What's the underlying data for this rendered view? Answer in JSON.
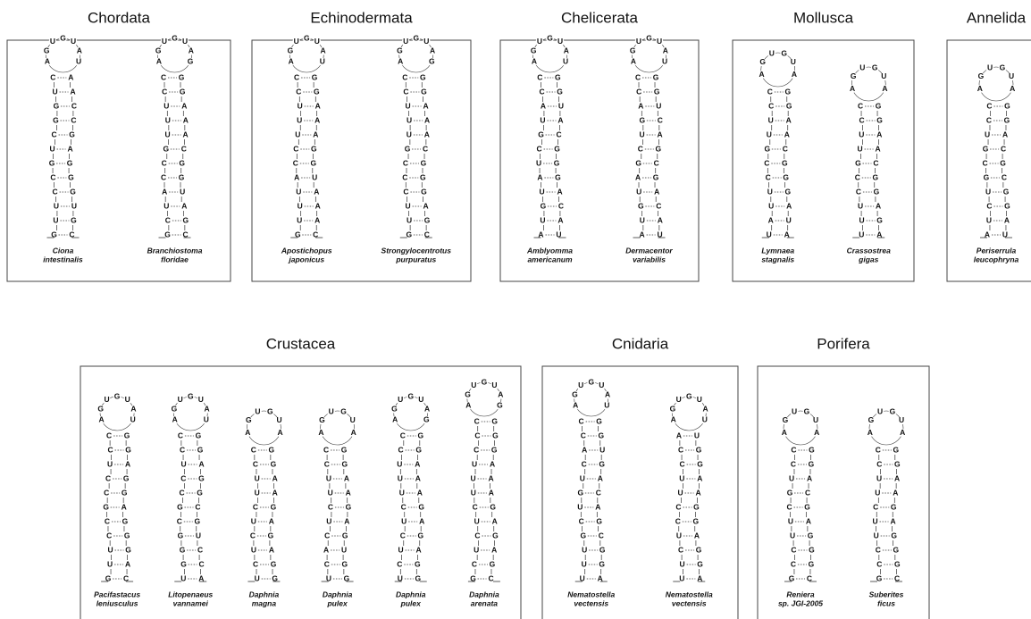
{
  "groups": [
    {
      "title": "Chordata",
      "species": [
        {
          "label": [
            "Ciona",
            "intestinalis"
          ],
          "loop": [
            "A",
            "G",
            "U",
            "G",
            "U",
            "A",
            "U"
          ],
          "left": [
            "G",
            "U",
            "U",
            "C",
            "C",
            "G",
            "U",
            "C",
            "G",
            "G",
            "U",
            "C"
          ],
          "right": [
            "C",
            "G",
            "U",
            "G",
            "G",
            "G",
            "A",
            "G",
            "C",
            "C",
            "A",
            "A"
          ]
        },
        {
          "label": [
            "Branchiostoma",
            "floridae"
          ],
          "loop": [
            "A",
            "G",
            "U",
            "G",
            "U",
            "A",
            "G"
          ],
          "left": [
            "G",
            "C",
            "U",
            "A",
            "C",
            "C",
            "G",
            "U",
            "U",
            "U",
            "C",
            "C"
          ],
          "right": [
            "C",
            "G",
            "A",
            "U",
            "G",
            "G",
            "C",
            "A",
            "A",
            "A",
            "G",
            "G"
          ]
        }
      ]
    },
    {
      "title": "Echinodermata",
      "species": [
        {
          "label": [
            "Apostichopus",
            "japonicus"
          ],
          "loop": [
            "A",
            "G",
            "U",
            "G",
            "U",
            "A",
            "U"
          ],
          "left": [
            "G",
            "U",
            "U",
            "U",
            "A",
            "C",
            "C",
            "U",
            "U",
            "U",
            "C",
            "C"
          ],
          "right": [
            "C",
            "A",
            "A",
            "A",
            "U",
            "G",
            "G",
            "A",
            "A",
            "A",
            "G",
            "G"
          ]
        },
        {
          "label": [
            "Strongylocentrotus",
            "purpuratus"
          ],
          "loop": [
            "A",
            "G",
            "U",
            "G",
            "U",
            "A",
            "G"
          ],
          "left": [
            "G",
            "U",
            "U",
            "C",
            "C",
            "C",
            "G",
            "U",
            "U",
            "U",
            "C",
            "C"
          ],
          "right": [
            "C",
            "G",
            "A",
            "G",
            "G",
            "G",
            "C",
            "A",
            "A",
            "A",
            "G",
            "G"
          ]
        }
      ]
    },
    {
      "title": "Chelicerata",
      "species": [
        {
          "label": [
            "Amblyomma",
            "americanum"
          ],
          "loop": [
            "A",
            "G",
            "U",
            "G",
            "U",
            "A",
            "U"
          ],
          "left": [
            "A",
            "U",
            "G",
            "U",
            "A",
            "U",
            "C",
            "G",
            "U",
            "A",
            "C",
            "C"
          ],
          "right": [
            "U",
            "A",
            "C",
            "A",
            "G",
            "G",
            "G",
            "C",
            "A",
            "U",
            "G",
            "G"
          ]
        },
        {
          "label": [
            "Dermacentor",
            "variabilis"
          ],
          "loop": [
            "A",
            "G",
            "U",
            "G",
            "U",
            "A",
            "U"
          ],
          "left": [
            "A",
            "U",
            "G",
            "U",
            "A",
            "G",
            "C",
            "U",
            "G",
            "A",
            "C",
            "C"
          ],
          "right": [
            "U",
            "A",
            "C",
            "A",
            "G",
            "C",
            "G",
            "A",
            "C",
            "U",
            "G",
            "G"
          ]
        }
      ]
    },
    {
      "title": "Mollusca",
      "species": [
        {
          "label": [
            "Lymnaea",
            "stagnalis"
          ],
          "loop": [
            "A",
            "G",
            "U",
            "G",
            "U",
            "A"
          ],
          "left": [
            "U",
            "A",
            "U",
            "U",
            "C",
            "C",
            "G",
            "U",
            "U",
            "C",
            "C"
          ],
          "right": [
            "A",
            "U",
            "A",
            "G",
            "G",
            "G",
            "C",
            "A",
            "A",
            "G",
            "G"
          ]
        },
        {
          "label": [
            "Crassostrea",
            "gigas"
          ],
          "loop": [
            "A",
            "G",
            "U",
            "G",
            "U",
            "A"
          ],
          "left": [
            "U",
            "U",
            "U",
            "C",
            "C",
            "G",
            "U",
            "U",
            "C",
            "C"
          ],
          "right": [
            "A",
            "G",
            "A",
            "G",
            "G",
            "C",
            "A",
            "A",
            "G",
            "G"
          ]
        }
      ]
    },
    {
      "title": "Annelida",
      "species": [
        {
          "label": [
            "Periserrula",
            "leucophryna"
          ],
          "loop": [
            "A",
            "G",
            "U",
            "G",
            "U",
            "A"
          ],
          "left": [
            "A",
            "U",
            "C",
            "U",
            "G",
            "C",
            "G",
            "U",
            "C",
            "C"
          ],
          "right": [
            "U",
            "A",
            "G",
            "G",
            "C",
            "G",
            "C",
            "A",
            "G",
            "G"
          ]
        }
      ]
    },
    {
      "title": "Crustacea",
      "species": [
        {
          "label": [
            "Pacifastacus",
            "leniusculus"
          ],
          "loop": [
            "A",
            "G",
            "U",
            "G",
            "U",
            "A",
            "U"
          ],
          "left": [
            "G",
            "U",
            "U",
            "C",
            "C",
            "G",
            "C",
            "C",
            "U",
            "C",
            "C"
          ],
          "right": [
            "C",
            "A",
            "G",
            "G",
            "G",
            "A",
            "G",
            "G",
            "A",
            "G",
            "G"
          ]
        },
        {
          "label": [
            "Litopenaeus",
            "vannamei"
          ],
          "loop": [
            "A",
            "G",
            "U",
            "G",
            "U",
            "A",
            "U"
          ],
          "left": [
            "U",
            "G",
            "G",
            "G",
            "C",
            "G",
            "C",
            "C",
            "U",
            "C",
            "C"
          ],
          "right": [
            "A",
            "C",
            "C",
            "U",
            "G",
            "C",
            "G",
            "G",
            "A",
            "G",
            "G"
          ]
        },
        {
          "label": [
            "Daphnia",
            "magna"
          ],
          "loop": [
            "A",
            "G",
            "U",
            "G",
            "U",
            "A"
          ],
          "left": [
            "U",
            "C",
            "U",
            "C",
            "U",
            "C",
            "U",
            "U",
            "C",
            "C"
          ],
          "right": [
            "G",
            "G",
            "A",
            "G",
            "A",
            "G",
            "A",
            "A",
            "G",
            "G"
          ]
        },
        {
          "label": [
            "Daphnia",
            "pulex"
          ],
          "loop": [
            "A",
            "G",
            "U",
            "G",
            "U",
            "A"
          ],
          "left": [
            "U",
            "C",
            "A",
            "C",
            "U",
            "C",
            "U",
            "U",
            "C",
            "C"
          ],
          "right": [
            "G",
            "G",
            "U",
            "G",
            "A",
            "G",
            "A",
            "A",
            "G",
            "G"
          ]
        },
        {
          "label": [
            "Daphnia",
            "pulex"
          ],
          "loop": [
            "A",
            "G",
            "U",
            "G",
            "U",
            "A",
            "G"
          ],
          "left": [
            "U",
            "C",
            "U",
            "C",
            "U",
            "C",
            "U",
            "U",
            "U",
            "C",
            "C"
          ],
          "right": [
            "G",
            "G",
            "A",
            "G",
            "A",
            "G",
            "A",
            "A",
            "A",
            "G",
            "G"
          ]
        },
        {
          "label": [
            "Daphnia",
            "arenata"
          ],
          "loop": [
            "A",
            "G",
            "U",
            "G",
            "U",
            "A",
            "G"
          ],
          "left": [
            "G",
            "C",
            "U",
            "C",
            "U",
            "C",
            "U",
            "U",
            "U",
            "C",
            "C",
            "C"
          ],
          "right": [
            "C",
            "G",
            "A",
            "G",
            "A",
            "G",
            "A",
            "A",
            "A",
            "G",
            "G",
            "G"
          ]
        }
      ]
    },
    {
      "title": "Cnidaria",
      "species": [
        {
          "label": [
            "Nematostella",
            "vectensis"
          ],
          "loop": [
            "A",
            "G",
            "U",
            "G",
            "U",
            "A",
            "U"
          ],
          "left": [
            "U",
            "U",
            "U",
            "G",
            "C",
            "U",
            "G",
            "U",
            "C",
            "A",
            "C",
            "C"
          ],
          "right": [
            "A",
            "G",
            "G",
            "C",
            "G",
            "A",
            "C",
            "A",
            "G",
            "U",
            "G",
            "G"
          ]
        },
        {
          "label": [
            "Nematostella",
            "vectensis"
          ],
          "loop": [
            "A",
            "G",
            "U",
            "G",
            "U",
            "A",
            "U"
          ],
          "left": [
            "U",
            "U",
            "C",
            "U",
            "C",
            "C",
            "U",
            "U",
            "C",
            "C",
            "A"
          ],
          "right": [
            "A",
            "G",
            "G",
            "A",
            "G",
            "G",
            "A",
            "A",
            "G",
            "G",
            "U"
          ]
        }
      ]
    },
    {
      "title": "Porifera",
      "species": [
        {
          "label": [
            "Reniera",
            "sp. JGI-2005"
          ],
          "loop": [
            "A",
            "G",
            "U",
            "G",
            "U",
            "A"
          ],
          "left": [
            "G",
            "C",
            "C",
            "U",
            "U",
            "C",
            "G",
            "U",
            "C",
            "C"
          ],
          "right": [
            "C",
            "G",
            "G",
            "G",
            "A",
            "G",
            "C",
            "A",
            "G",
            "G"
          ]
        },
        {
          "label": [
            "Suberites",
            "ficus"
          ],
          "loop": [
            "A",
            "G",
            "U",
            "G",
            "U",
            "A"
          ],
          "left": [
            "G",
            "C",
            "C",
            "U",
            "U",
            "C",
            "U",
            "U",
            "C",
            "C"
          ],
          "right": [
            "C",
            "G",
            "G",
            "G",
            "A",
            "G",
            "A",
            "A",
            "G",
            "G"
          ]
        }
      ]
    }
  ]
}
